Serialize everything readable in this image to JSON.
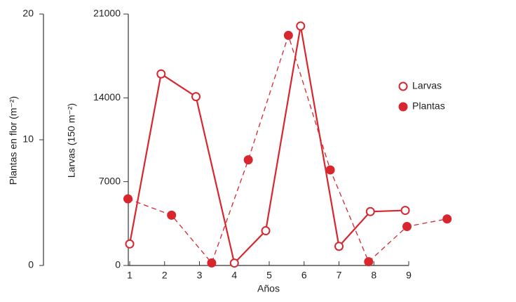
{
  "chart_data": {
    "type": "line",
    "xlabel": "Años",
    "ylabel": "Plantas en flor (m⁻²)",
    "y2label": "Larvas (150 m⁻²)",
    "xlim": [
      1,
      9
    ],
    "xticks": [
      1,
      2,
      3,
      4,
      5,
      6,
      7,
      8,
      9
    ],
    "ylim": [
      0,
      20
    ],
    "yticks": [
      0,
      10,
      20
    ],
    "y2lim": [
      0,
      21000
    ],
    "y2ticks": [
      0,
      7000,
      14000,
      21000
    ],
    "legend": "right",
    "series": [
      {
        "name": "Larvas",
        "color": "#d8262e",
        "axis": "y2",
        "marker": "open",
        "dashed": false,
        "x": [
          1,
          1.9,
          2.9,
          4,
          4.9,
          5.9,
          7,
          7.9,
          8.9
        ],
        "values": [
          1800,
          16000,
          14100,
          200,
          2900,
          20000,
          1600,
          4500,
          4600
        ]
      },
      {
        "name": "Plantas",
        "color": "#d8262e",
        "axis": "y",
        "marker": "filled",
        "dashed": true,
        "x": [
          0.95,
          2.2,
          3.35,
          4.4,
          5.55,
          6.75,
          7.85,
          8.95,
          10.1
        ],
        "values": [
          5.3,
          4.0,
          0.2,
          8.4,
          18.3,
          7.6,
          0.3,
          3.1,
          3.7
        ]
      }
    ]
  }
}
